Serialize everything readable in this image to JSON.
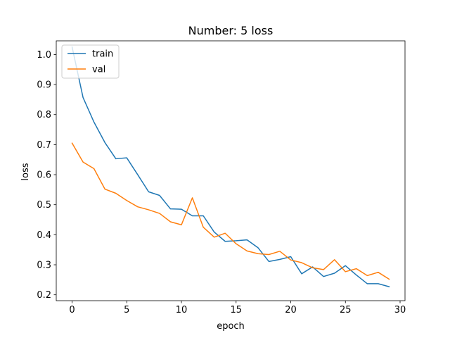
{
  "chart_data": {
    "type": "line",
    "title": "Number: 5 loss",
    "xlabel": "epoch",
    "ylabel": "loss",
    "xlim": [
      -1.45,
      30.45
    ],
    "ylim": [
      0.1805,
      1.0455
    ],
    "xticks": [
      0,
      5,
      10,
      15,
      20,
      25,
      30
    ],
    "yticks": [
      0.2,
      0.3,
      0.4,
      0.5,
      0.6,
      0.7,
      0.8,
      0.9,
      1.0
    ],
    "ytick_labels": [
      "0.2",
      "0.3",
      "0.4",
      "0.5",
      "0.6",
      "0.7",
      "0.8",
      "0.9",
      "1.0"
    ],
    "grid": false,
    "legend_position": "top-left",
    "x": [
      0,
      1,
      2,
      3,
      4,
      5,
      6,
      7,
      8,
      9,
      10,
      11,
      12,
      13,
      14,
      15,
      16,
      17,
      18,
      19,
      20,
      21,
      22,
      23,
      24,
      25,
      26,
      27,
      28,
      29
    ],
    "series": [
      {
        "name": "train",
        "color": "#1f77b4",
        "values": [
          1.025,
          0.857,
          0.775,
          0.707,
          0.653,
          0.656,
          0.6,
          0.543,
          0.531,
          0.486,
          0.485,
          0.463,
          0.463,
          0.409,
          0.378,
          0.38,
          0.383,
          0.357,
          0.311,
          0.318,
          0.327,
          0.27,
          0.293,
          0.261,
          0.272,
          0.297,
          0.266,
          0.237,
          0.237,
          0.227
        ]
      },
      {
        "name": "val",
        "color": "#ff7f0e",
        "values": [
          0.705,
          0.642,
          0.62,
          0.552,
          0.538,
          0.514,
          0.493,
          0.483,
          0.471,
          0.443,
          0.433,
          0.523,
          0.425,
          0.392,
          0.405,
          0.37,
          0.346,
          0.337,
          0.334,
          0.345,
          0.316,
          0.307,
          0.29,
          0.284,
          0.317,
          0.277,
          0.287,
          0.264,
          0.275,
          0.252
        ]
      }
    ]
  }
}
